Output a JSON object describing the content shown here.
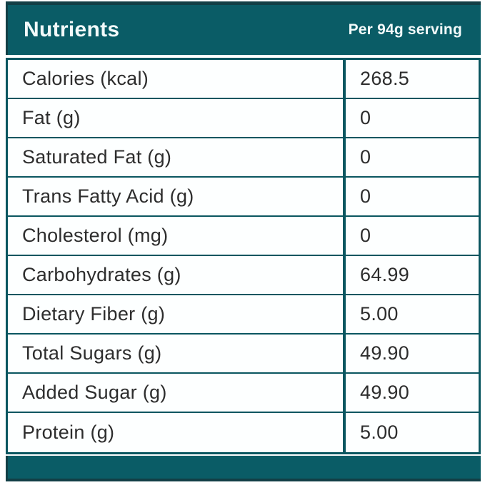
{
  "colors": {
    "teal": "#0a5c66",
    "teal_dark": "#123f46",
    "border_teal": "#0a5660",
    "text": "#2d2d2d",
    "header_text": "#f2fafa",
    "background": "#ffffff"
  },
  "header": {
    "title": "Nutrients",
    "serving_label": "Per 94g serving"
  },
  "table": {
    "columns": [
      "Nutrients",
      "Per 94g serving"
    ],
    "rows": [
      {
        "label": "Calories (kcal)",
        "value": "268.5"
      },
      {
        "label": "Fat (g)",
        "value": "0"
      },
      {
        "label": "Saturated Fat (g)",
        "value": "0"
      },
      {
        "label": "Trans Fatty Acid (g)",
        "value": "0"
      },
      {
        "label": "Cholesterol (mg)",
        "value": "0"
      },
      {
        "label": "Carbohydrates (g)",
        "value": "64.99"
      },
      {
        "label": "Dietary Fiber (g)",
        "value": "5.00"
      },
      {
        "label": "Total Sugars (g)",
        "value": "49.90"
      },
      {
        "label": "Added Sugar (g)",
        "value": "49.90"
      },
      {
        "label": "Protein (g)",
        "value": "5.00"
      }
    ]
  }
}
